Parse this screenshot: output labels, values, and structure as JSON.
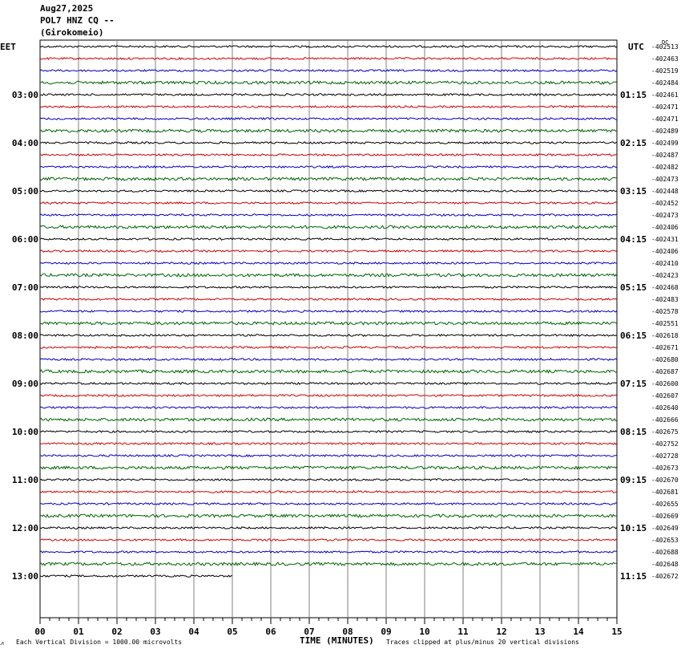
{
  "header": {
    "date": "Aug27,2025",
    "station": "POL7 HNZ CQ --",
    "location": "(Girokomeio)"
  },
  "labels": {
    "left_tz": "EET",
    "right_tz": "UTC",
    "dc": "DC",
    "corner_mark": "⩘"
  },
  "footer": {
    "scale_note": "Each Vertical Division = 1000.00 microvolts",
    "x_title": "TIME (MINUTES)",
    "clip_note": "Traces clipped at plus/minus 20 vertical divisions"
  },
  "colors": {
    "trace_cycle": [
      "#000000",
      "#d40000",
      "#0000c8",
      "#006400"
    ],
    "grid": "#808080"
  },
  "chart_data": {
    "type": "line",
    "x_ticks": [
      "00",
      "01",
      "02",
      "03",
      "04",
      "05",
      "06",
      "07",
      "08",
      "09",
      "10",
      "11",
      "12",
      "13",
      "14",
      "15"
    ],
    "xlim": [
      0,
      15
    ],
    "left_hour_labels": [
      "03:00",
      "04:00",
      "05:00",
      "06:00",
      "07:00",
      "08:00",
      "09:00",
      "10:00",
      "11:00",
      "12:00",
      "13:00"
    ],
    "right_hour_labels": [
      "01:15",
      "02:15",
      "03:15",
      "04:15",
      "05:15",
      "06:15",
      "07:15",
      "08:15",
      "09:15",
      "10:15",
      "11:15"
    ],
    "dc_offsets": [
      "-402513",
      "-402463",
      "-402519",
      "-402484",
      "-402461",
      "-402471",
      "-402471",
      "-402489",
      "-402499",
      "-402487",
      "-402482",
      "-402473",
      "-402448",
      "-402452",
      "-402473",
      "-402406",
      "-402431",
      "-402406",
      "-402410",
      "-402423",
      "-402468",
      "-402483",
      "-402578",
      "-402551",
      "-402618",
      "-402671",
      "-402680",
      "-402687",
      "-402600",
      "-402607",
      "-402640",
      "-402666",
      "-402675",
      "-402752",
      "-402728",
      "-402673",
      "-402670",
      "-402681",
      "-402655",
      "-402669",
      "-402649",
      "-402653",
      "-402688",
      "-402648",
      "-402672"
    ],
    "last_trace_end_minute": 5,
    "trace_count": 45
  }
}
